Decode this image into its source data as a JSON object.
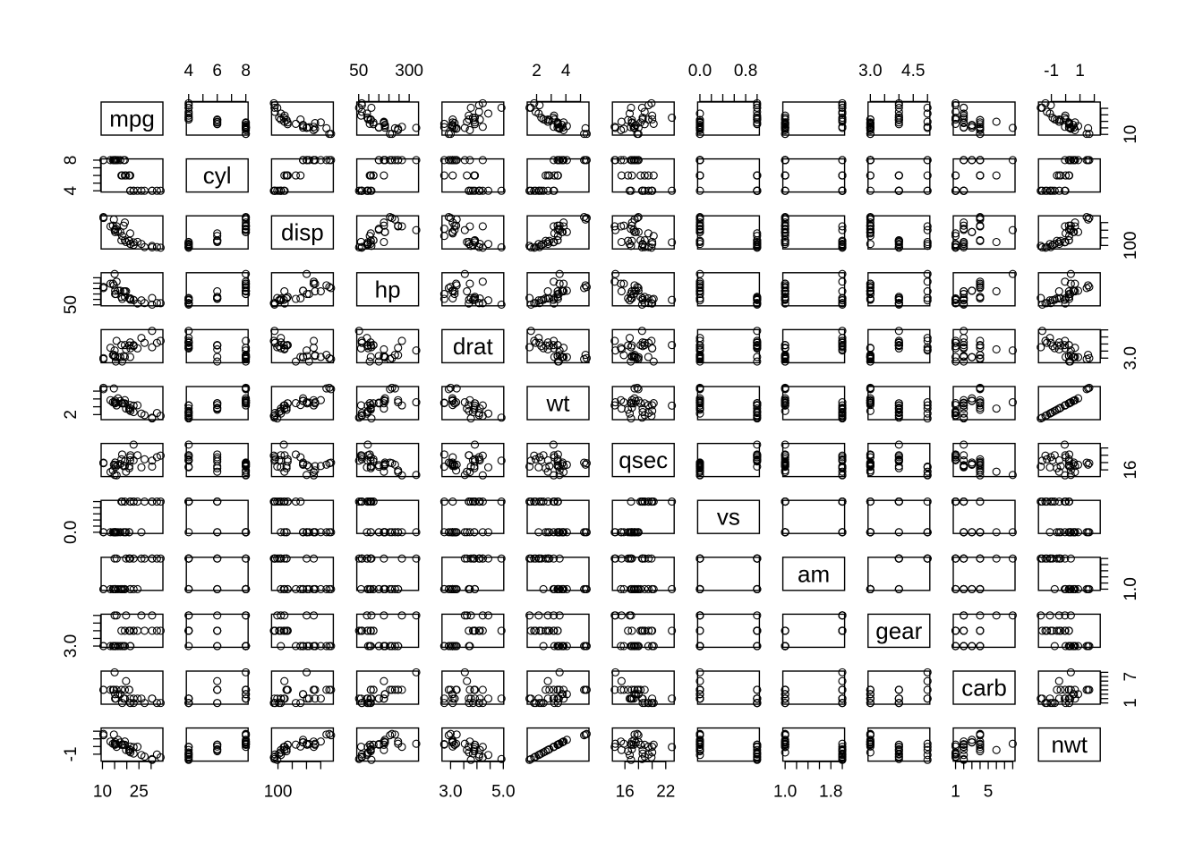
{
  "chart_data": {
    "type": "scatter",
    "title": "",
    "variables": [
      "mpg",
      "cyl",
      "disp",
      "hp",
      "drat",
      "wt",
      "qsec",
      "vs",
      "am",
      "gear",
      "carb",
      "nwt"
    ],
    "ranges": {
      "mpg": [
        10.4,
        33.9
      ],
      "cyl": [
        4,
        8
      ],
      "disp": [
        71.1,
        472
      ],
      "hp": [
        52,
        335
      ],
      "drat": [
        2.76,
        4.93
      ],
      "wt": [
        1.513,
        5.424
      ],
      "qsec": [
        14.5,
        22.9
      ],
      "vs": [
        0,
        1
      ],
      "am": [
        1,
        2
      ],
      "gear": [
        3,
        5
      ],
      "carb": [
        1,
        8
      ],
      "nwt": [
        -1.741,
        2.256
      ]
    },
    "axis_ticks": {
      "mpg": [
        10,
        15,
        20,
        25,
        30
      ],
      "cyl": [
        4,
        5,
        6,
        7,
        8
      ],
      "disp": [
        100,
        200,
        300,
        400
      ],
      "hp": [
        50,
        100,
        150,
        200,
        250,
        300
      ],
      "drat": [
        3.0,
        3.5,
        4.0,
        4.5,
        5.0
      ],
      "wt": [
        2,
        3,
        4,
        5
      ],
      "qsec": [
        16,
        18,
        20,
        22
      ],
      "vs": [
        0.0,
        0.2,
        0.4,
        0.6,
        0.8,
        1.0
      ],
      "am": [
        1.0,
        1.2,
        1.4,
        1.6,
        1.8,
        2.0
      ],
      "gear": [
        3.0,
        3.5,
        4.0,
        4.5,
        5.0
      ],
      "carb": [
        1,
        2,
        3,
        4,
        5,
        6,
        7,
        8
      ],
      "nwt": [
        -1,
        0,
        1,
        2
      ]
    },
    "top_tick_labels": {
      "cyl": [
        "4",
        "6",
        "8"
      ],
      "hp": [
        "50",
        "300"
      ],
      "wt": [
        "2",
        "4"
      ],
      "vs": [
        "0.0",
        "0.8"
      ],
      "gear": [
        "3.0",
        "4.5"
      ],
      "nwt": [
        "-1",
        "1"
      ]
    },
    "bottom_tick_labels": {
      "mpg": [
        "10",
        "25"
      ],
      "disp": [
        "100"
      ],
      "drat": [
        "3.0",
        "5.0"
      ],
      "qsec": [
        "16",
        "22"
      ],
      "am": [
        "1.0",
        "1.8"
      ],
      "carb": [
        "1",
        "5"
      ]
    },
    "left_tick_labels": {
      "cyl": [
        "4",
        "8"
      ],
      "hp": [
        "50"
      ],
      "wt": [
        "2"
      ],
      "vs": [
        "0.0"
      ],
      "gear": [
        "3.0"
      ],
      "nwt": [
        "-1"
      ]
    },
    "right_tick_labels": {
      "mpg": [
        "10"
      ],
      "disp": [
        "100"
      ],
      "drat": [
        "3.0"
      ],
      "qsec": [
        "16"
      ],
      "am": [
        "1.0"
      ],
      "carb": [
        "1",
        "7"
      ]
    },
    "observations": {
      "mpg": [
        21.0,
        21.0,
        22.8,
        21.4,
        18.7,
        18.1,
        14.3,
        24.4,
        22.8,
        19.2,
        17.8,
        16.4,
        17.3,
        15.2,
        10.4,
        10.4,
        14.7,
        32.4,
        30.4,
        33.9,
        21.5,
        15.5,
        15.2,
        13.3,
        19.2,
        27.3,
        26.0,
        30.4,
        15.8,
        19.7,
        15.0,
        21.4
      ],
      "cyl": [
        6,
        6,
        4,
        6,
        8,
        6,
        8,
        4,
        4,
        6,
        6,
        8,
        8,
        8,
        8,
        8,
        8,
        4,
        4,
        4,
        4,
        8,
        8,
        8,
        8,
        4,
        4,
        4,
        8,
        6,
        8,
        4
      ],
      "disp": [
        160,
        160,
        108,
        258,
        360,
        225,
        360,
        146.7,
        140.8,
        167.6,
        167.6,
        275.8,
        275.8,
        275.8,
        472,
        460,
        440,
        78.7,
        75.7,
        71.1,
        120.1,
        318,
        304,
        350,
        400,
        79,
        120.3,
        95.1,
        351,
        145,
        301,
        121
      ],
      "hp": [
        110,
        110,
        93,
        110,
        175,
        105,
        245,
        62,
        95,
        123,
        123,
        180,
        180,
        180,
        205,
        215,
        230,
        66,
        52,
        65,
        97,
        150,
        150,
        245,
        175,
        66,
        91,
        113,
        264,
        175,
        335,
        109
      ],
      "drat": [
        3.9,
        3.9,
        3.85,
        3.08,
        3.15,
        2.76,
        3.21,
        3.69,
        3.92,
        3.92,
        3.92,
        3.07,
        3.07,
        3.07,
        2.93,
        3.0,
        3.23,
        4.08,
        4.93,
        4.22,
        3.7,
        2.76,
        3.15,
        3.73,
        3.08,
        4.08,
        4.43,
        3.77,
        4.22,
        3.62,
        3.54,
        4.11
      ],
      "wt": [
        2.62,
        2.875,
        2.32,
        3.215,
        3.44,
        3.46,
        3.57,
        3.19,
        3.15,
        3.44,
        3.44,
        4.07,
        3.73,
        3.78,
        5.25,
        5.424,
        5.345,
        2.2,
        1.615,
        1.835,
        2.465,
        3.52,
        3.435,
        3.84,
        3.845,
        1.935,
        2.14,
        1.513,
        3.17,
        2.77,
        3.57,
        2.78
      ],
      "qsec": [
        16.46,
        17.02,
        18.61,
        19.44,
        17.02,
        20.22,
        15.84,
        20.0,
        22.9,
        18.3,
        18.9,
        17.4,
        17.6,
        18.0,
        17.98,
        17.82,
        17.42,
        19.47,
        18.52,
        19.9,
        20.01,
        16.87,
        17.3,
        15.41,
        17.05,
        18.9,
        16.7,
        16.9,
        14.5,
        15.5,
        14.6,
        18.6
      ],
      "vs": [
        0,
        0,
        1,
        1,
        0,
        1,
        0,
        1,
        1,
        1,
        1,
        0,
        0,
        0,
        0,
        0,
        0,
        1,
        1,
        1,
        1,
        0,
        0,
        0,
        0,
        1,
        0,
        1,
        0,
        0,
        0,
        1
      ],
      "am": [
        2,
        2,
        2,
        1,
        1,
        1,
        1,
        1,
        1,
        1,
        1,
        1,
        1,
        1,
        1,
        1,
        1,
        2,
        2,
        2,
        1,
        1,
        1,
        1,
        1,
        2,
        2,
        2,
        2,
        2,
        2,
        2
      ],
      "gear": [
        4,
        4,
        4,
        3,
        3,
        3,
        3,
        4,
        4,
        4,
        4,
        3,
        3,
        3,
        3,
        3,
        3,
        4,
        4,
        4,
        3,
        3,
        3,
        3,
        3,
        4,
        5,
        5,
        5,
        5,
        5,
        4
      ],
      "carb": [
        4,
        4,
        1,
        1,
        2,
        1,
        4,
        2,
        2,
        4,
        4,
        3,
        3,
        3,
        4,
        4,
        4,
        1,
        2,
        1,
        1,
        2,
        2,
        4,
        2,
        1,
        2,
        2,
        4,
        6,
        8,
        2
      ],
      "nwt": [
        -0.61,
        -0.35,
        -0.917,
        -0.002,
        0.228,
        0.248,
        0.361,
        -0.027,
        -0.068,
        0.228,
        0.228,
        0.872,
        0.524,
        0.575,
        1.469,
        1.648,
        1.567,
        -1.039,
        -1.637,
        -1.412,
        -0.768,
        0.32,
        0.233,
        0.647,
        0.652,
        -1.31,
        -1.1,
        -1.741,
        -0.047,
        -0.457,
        0.361,
        -0.447
      ]
    }
  }
}
